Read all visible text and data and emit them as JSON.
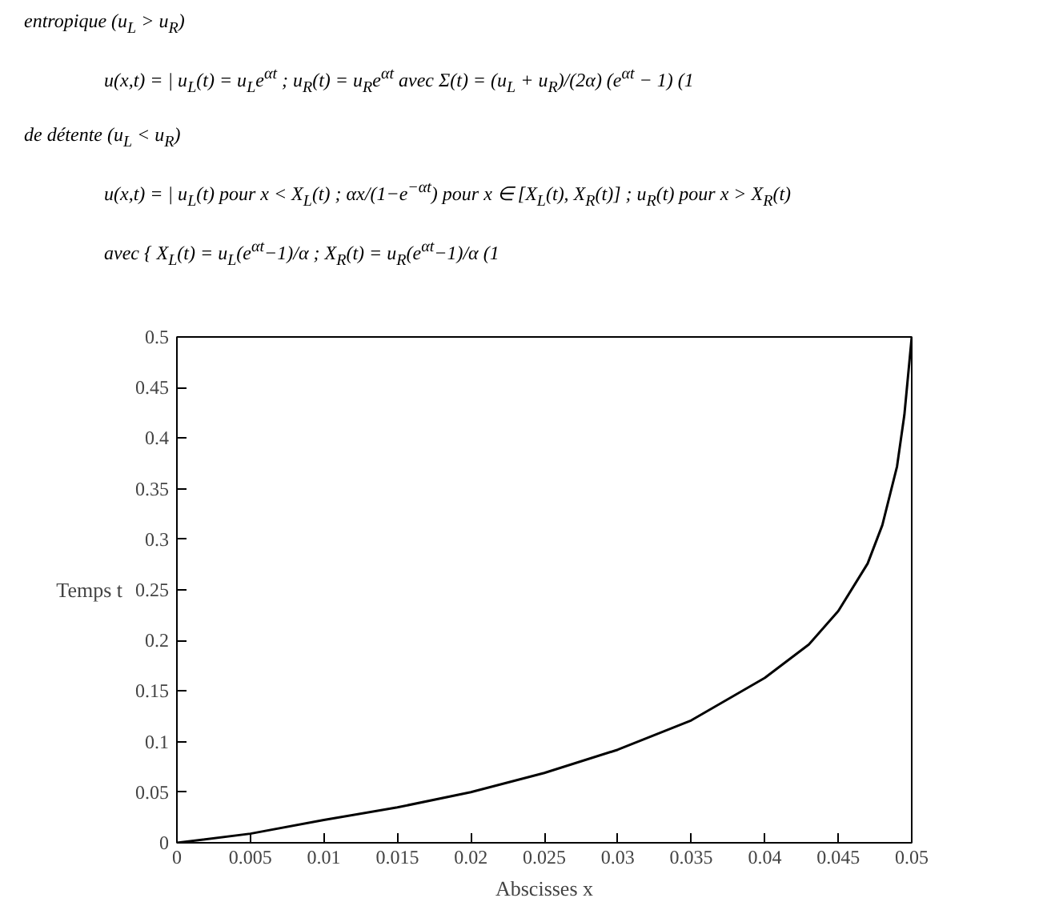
{
  "chart_data": {
    "type": "line",
    "annotations": [
      "entropique (u$_{L}$ > u$_{R}$)",
      "u(x,t) = | u$_{L}$(t) = u$_{L}$e$^{αt}$ ; u$_{R}$(t) = u$_{R}$e$^{αt}$     avec Σ(t) = (u$_{L}$ + u$_{R}$)/(2α) (e$^{αt}$ − 1)     (1",
      "de détente (u$_{L}$ < u$_{R}$)",
      "u(x,t) = | u$_{L}$(t) pour x < X$_{L}$(t) ; αx/(1−e$^{−αt}$) pour x ∈ [X$_{L}$(t), X$_{R}$(t)] ; u$_{R}$(t) pour x > X$_{R}$(t)",
      "avec { X$_{L}$(t) = u$_{L}$(e$^{αt}$−1)/α ; X$_{R}$(t) = u$_{R}$(e$^{αt}$−1)/α     (1"
    ],
    "xlabel": "Abscisses x",
    "ylabel": "Temps t",
    "xlim": [
      0,
      0.05
    ],
    "ylim": [
      0,
      0.5
    ],
    "xticks": [
      0,
      0.005,
      0.01,
      0.015,
      0.02,
      0.025,
      0.03,
      0.035,
      0.04,
      0.045,
      0.05
    ],
    "yticks": [
      0,
      0.05,
      0.1,
      0.15,
      0.2,
      0.25,
      0.3,
      0.35,
      0.4,
      0.45,
      0.5
    ],
    "grid": false,
    "series": [
      {
        "color": "#000000",
        "x": [
          0,
          0.005,
          0.01,
          0.015,
          0.02,
          0.025,
          0.03,
          0.035,
          0.04,
          0.043,
          0.045,
          0.047,
          0.048,
          0.049,
          0.0495,
          0.05
        ],
        "values": [
          0,
          0.009,
          0.0225,
          0.035,
          0.05,
          0.069,
          0.092,
          0.121,
          0.163,
          0.196,
          0.229,
          0.276,
          0.314,
          0.372,
          0.423,
          0.5
        ]
      }
    ]
  }
}
